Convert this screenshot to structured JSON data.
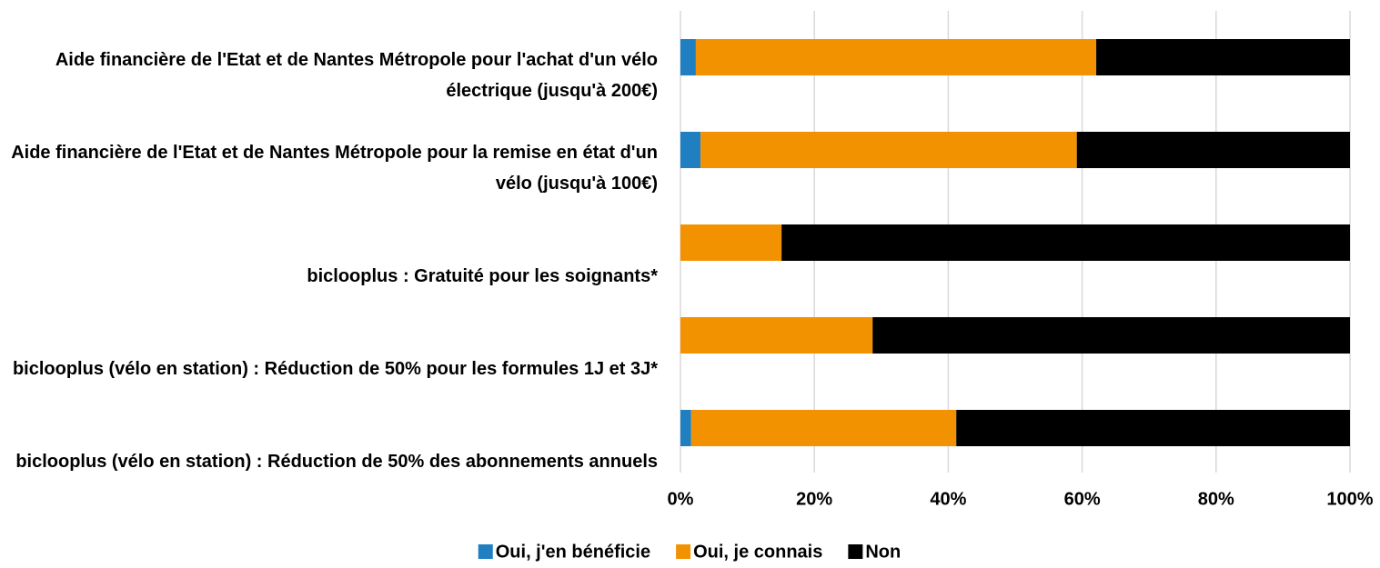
{
  "chart_data": {
    "type": "stacked-barh",
    "categories": [
      "Aide financière de l'Etat et de Nantes Métropole pour l'achat d'un vélo électrique (jusqu'à 200€)",
      "Aide financière de l'Etat et de Nantes Métropole pour la remise en état d'un vélo (jusqu'à 100€)",
      "biclooplus : Gratuité pour les soignants*",
      "biclooplus (vélo en station) : Réduction de 50% pour les formules 1J et 3J*",
      "biclooplus (vélo en station) : Réduction de 50% des abonnements annuels"
    ],
    "series": [
      {
        "name": "Oui, j'en bénéficie",
        "color": "#1f7fc1",
        "values": [
          2.3,
          3.0,
          0,
          0,
          1.6
        ]
      },
      {
        "name": "Oui, je connais",
        "color": "#f39200",
        "values": [
          59.8,
          56.2,
          15.1,
          28.7,
          39.6
        ]
      },
      {
        "name": "Non",
        "color": "#000000",
        "values": [
          37.9,
          40.8,
          84.9,
          71.3,
          58.8
        ]
      }
    ],
    "xlim": [
      0,
      100
    ],
    "xticks": [
      {
        "value": 0,
        "label": "0%"
      },
      {
        "value": 20,
        "label": "20%"
      },
      {
        "value": 40,
        "label": "40%"
      },
      {
        "value": 60,
        "label": "60%"
      },
      {
        "value": 80,
        "label": "80%"
      },
      {
        "value": 100,
        "label": "100%"
      }
    ],
    "grid": true,
    "legend": "bottom"
  }
}
